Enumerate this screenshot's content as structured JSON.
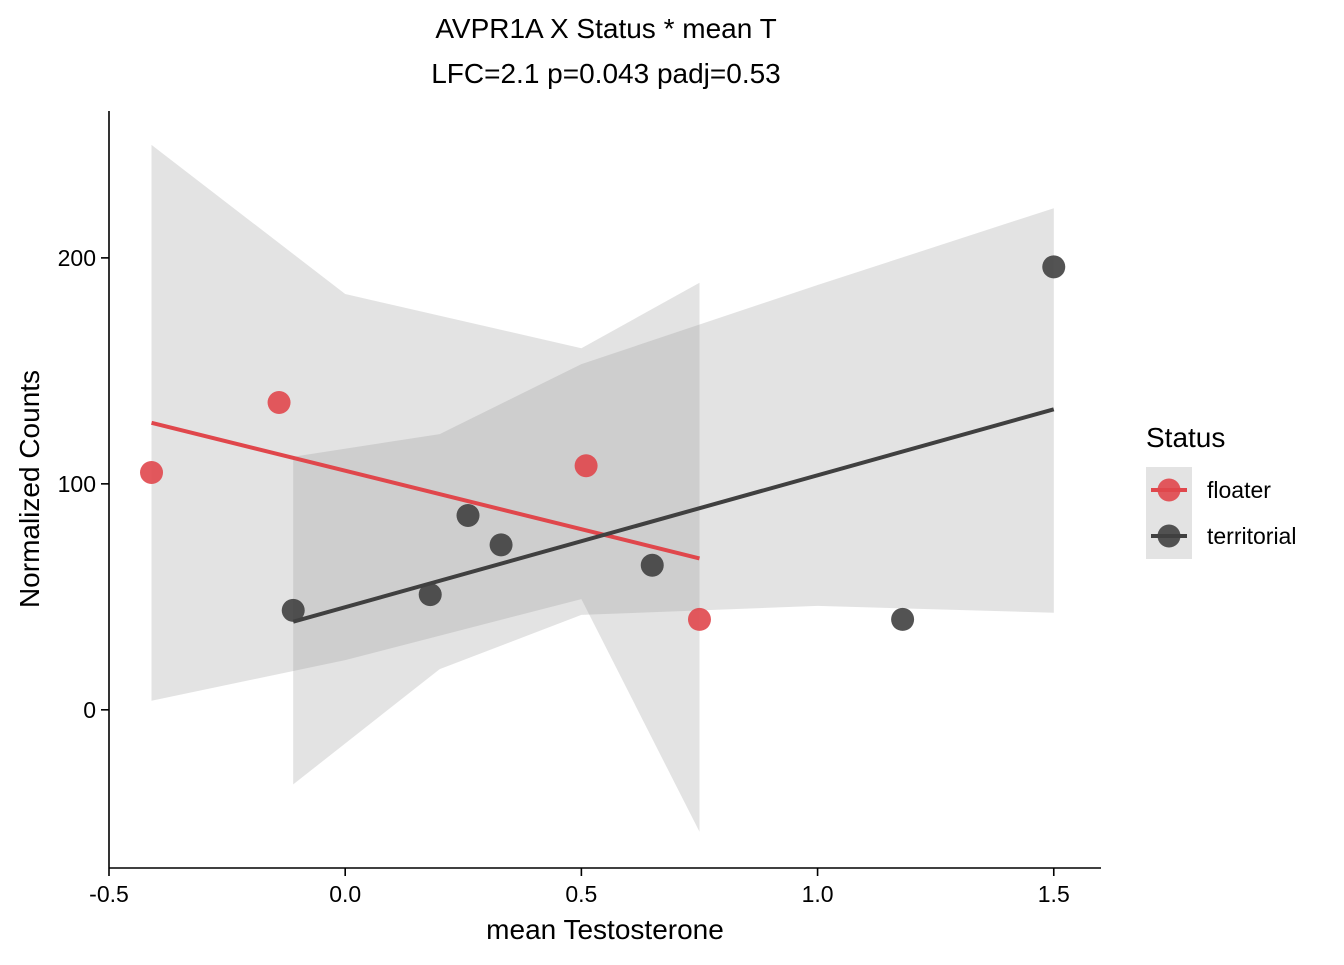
{
  "chart_data": {
    "type": "scatter",
    "title": "AVPR1A X Status * mean T",
    "subtitle": "LFC=2.1 p=0.043 padj=0.53",
    "xlabel": "mean Testosterone",
    "ylabel": "Normalized Counts",
    "xlim": [
      -0.5,
      1.6
    ],
    "ylim": [
      -70,
      265
    ],
    "x_ticks": [
      -0.5,
      0.0,
      0.5,
      1.0,
      1.5
    ],
    "x_tick_labels": [
      "-0.5",
      "0.0",
      "0.5",
      "1.0",
      "1.5"
    ],
    "y_ticks": [
      0,
      100,
      200
    ],
    "y_tick_labels": [
      "0",
      "100",
      "200"
    ],
    "grid": false,
    "legend": {
      "title": "Status",
      "position": "right"
    },
    "series": [
      {
        "name": "floater",
        "color": "#e0474c",
        "points": [
          {
            "x": -0.41,
            "y": 105
          },
          {
            "x": -0.14,
            "y": 136
          },
          {
            "x": 0.51,
            "y": 108
          },
          {
            "x": 0.75,
            "y": 40
          }
        ],
        "fit": {
          "x0": -0.41,
          "y0": 127,
          "x1": 0.75,
          "y1": 67
        },
        "ci": {
          "x": [
            -0.41,
            0.0,
            0.5,
            0.75
          ],
          "upper": [
            250,
            184,
            160,
            189
          ],
          "lower": [
            4,
            22,
            49,
            -54
          ]
        }
      },
      {
        "name": "territorial",
        "color": "#404040",
        "points": [
          {
            "x": -0.11,
            "y": 44
          },
          {
            "x": 0.18,
            "y": 51
          },
          {
            "x": 0.26,
            "y": 86
          },
          {
            "x": 0.33,
            "y": 73
          },
          {
            "x": 0.65,
            "y": 64
          },
          {
            "x": 1.18,
            "y": 40
          },
          {
            "x": 1.5,
            "y": 196
          }
        ],
        "fit": {
          "x0": -0.11,
          "y0": 39,
          "x1": 1.5,
          "y1": 133
        },
        "ci": {
          "x": [
            -0.11,
            0.2,
            0.5,
            1.0,
            1.5
          ],
          "upper": [
            112,
            122,
            153,
            188,
            222
          ],
          "lower": [
            -33,
            18,
            42,
            46,
            43
          ]
        }
      }
    ]
  }
}
